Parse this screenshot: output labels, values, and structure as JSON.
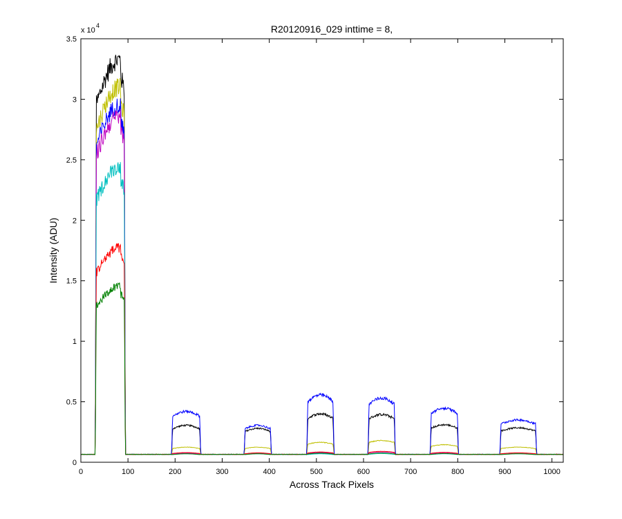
{
  "chart_data": {
    "type": "line",
    "title": "R20120916_029 inttime = 8,",
    "xlabel": "Across Track Pixels",
    "ylabel": "Intensity (ADU)",
    "exponent_label": {
      "base": "x 10",
      "power": "4"
    },
    "xlim": [
      0,
      1024
    ],
    "ylim": [
      0,
      35000
    ],
    "xticks": [
      0,
      100,
      200,
      300,
      400,
      500,
      600,
      700,
      800,
      900,
      1000
    ],
    "yticks": [
      0,
      5000,
      10000,
      15000,
      20000,
      25000,
      30000,
      35000
    ],
    "ytick_labels": [
      "0",
      "0.5",
      "1",
      "1.5",
      "2",
      "2.5",
      "3",
      "3.5"
    ],
    "grid": false,
    "baseline": 650,
    "segments": [
      {
        "start": 31,
        "end": 94
      },
      {
        "start": 193,
        "end": 254
      },
      {
        "start": 347,
        "end": 404
      },
      {
        "start": 480,
        "end": 537
      },
      {
        "start": 610,
        "end": 667
      },
      {
        "start": 742,
        "end": 801
      },
      {
        "start": 890,
        "end": 967
      }
    ],
    "series": [
      {
        "color": "#000000",
        "levels": [
          33300,
          3050,
          2800,
          4000,
          3950,
          3100,
          2850
        ]
      },
      {
        "color": "#bfbf00",
        "levels": [
          31000,
          1250,
          1250,
          1650,
          1800,
          1450,
          1250
        ]
      },
      {
        "color": "#0000ff",
        "levels": [
          29500,
          4200,
          3050,
          5550,
          5300,
          4450,
          3500
        ]
      },
      {
        "color": "#bf00bf",
        "levels": [
          28600,
          750,
          750,
          800,
          850,
          780,
          760
        ]
      },
      {
        "color": "#00bfbf",
        "levels": [
          24400,
          700,
          700,
          700,
          720,
          700,
          700
        ]
      },
      {
        "color": "#ff0000",
        "levels": [
          17700,
          800,
          780,
          850,
          900,
          820,
          780
        ]
      },
      {
        "color": "#008000",
        "levels": [
          14500,
          700,
          700,
          750,
          760,
          720,
          700
        ]
      }
    ]
  }
}
